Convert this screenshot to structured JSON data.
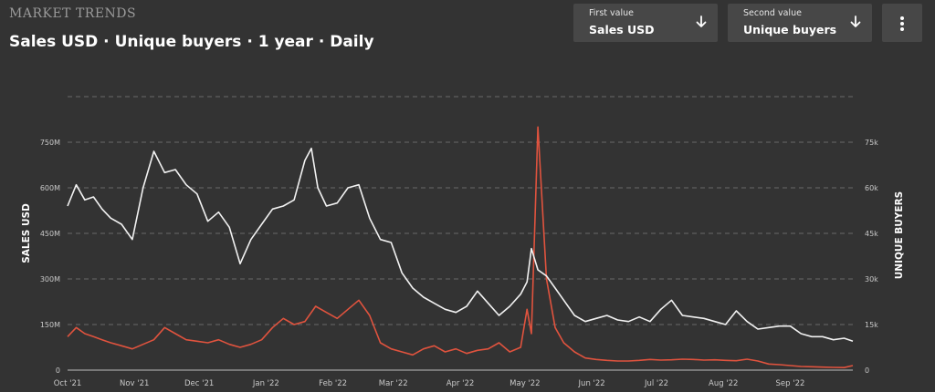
{
  "header": {
    "brand": "MARKET TRENDS",
    "title": "Sales USD · Unique buyers · 1 year · Daily"
  },
  "controls": {
    "first": {
      "caption": "First value",
      "value": "Sales USD"
    },
    "second": {
      "caption": "Second value",
      "value": "Unique buyers"
    },
    "menu_icon": "more-vertical-icon"
  },
  "colors": {
    "background": "#333333",
    "sales": "#f2f2f2",
    "buyers": "#e0533e",
    "grid": "#6a6a6a",
    "tick": "#c9c9c9"
  },
  "chart_data": {
    "type": "line",
    "ylabel": "SALES USD",
    "y2label": "UNIQUE BUYERS",
    "ylim": [
      0,
      900
    ],
    "y2lim": [
      0,
      90000
    ],
    "yticks": [
      0,
      150,
      300,
      450,
      600,
      750
    ],
    "ytick_labels": [
      "0",
      "150M",
      "300M",
      "450M",
      "600M",
      "750M"
    ],
    "y2ticks": [
      0,
      15000,
      30000,
      45000,
      60000,
      75000
    ],
    "y2tick_labels": [
      "0",
      "15k",
      "30k",
      "45k",
      "60k",
      "75k"
    ],
    "x_range": [
      0,
      364
    ],
    "xticks": [
      0,
      31,
      61,
      92,
      123,
      151,
      182,
      212,
      243,
      273,
      304,
      335
    ],
    "xtick_labels": [
      "Oct '21",
      "Nov '21",
      "Dec '21",
      "Jan '22",
      "Feb '22",
      "Mar '22",
      "Apr '22",
      "May '22",
      "Jun '22",
      "Jul '22",
      "Aug '22",
      "Sep '22"
    ],
    "grid": true,
    "series": [
      {
        "name": "Sales USD",
        "axis": "left",
        "unit": "M",
        "x": [
          0,
          4,
          8,
          12,
          16,
          20,
          25,
          30,
          35,
          40,
          45,
          50,
          55,
          60,
          65,
          70,
          75,
          80,
          85,
          90,
          95,
          100,
          105,
          110,
          113,
          116,
          120,
          125,
          130,
          135,
          140,
          145,
          150,
          155,
          160,
          165,
          170,
          175,
          180,
          185,
          190,
          195,
          200,
          205,
          210,
          213,
          215,
          218,
          222,
          226,
          230,
          235,
          240,
          245,
          250,
          255,
          260,
          265,
          270,
          275,
          280,
          285,
          290,
          295,
          300,
          305,
          310,
          315,
          320,
          325,
          330,
          335,
          340,
          345,
          350,
          355,
          360,
          364
        ],
        "values": [
          540,
          610,
          560,
          570,
          530,
          500,
          480,
          430,
          600,
          720,
          650,
          660,
          610,
          580,
          490,
          520,
          470,
          350,
          430,
          480,
          530,
          540,
          560,
          690,
          730,
          600,
          540,
          550,
          600,
          610,
          500,
          430,
          420,
          320,
          270,
          240,
          220,
          200,
          190,
          210,
          260,
          220,
          180,
          210,
          250,
          290,
          400,
          330,
          310,
          270,
          230,
          180,
          160,
          170,
          180,
          165,
          160,
          175,
          160,
          200,
          230,
          180,
          175,
          170,
          160,
          150,
          195,
          160,
          135,
          140,
          145,
          145,
          120,
          110,
          110,
          100,
          105,
          95
        ]
      },
      {
        "name": "Unique buyers",
        "axis": "right",
        "x": [
          0,
          4,
          8,
          12,
          16,
          20,
          25,
          30,
          35,
          40,
          45,
          50,
          55,
          60,
          65,
          70,
          75,
          80,
          85,
          90,
          95,
          100,
          105,
          110,
          115,
          120,
          125,
          130,
          135,
          140,
          145,
          150,
          155,
          160,
          165,
          170,
          175,
          180,
          185,
          190,
          195,
          200,
          205,
          210,
          213,
          215,
          218,
          222,
          226,
          230,
          235,
          240,
          245,
          250,
          255,
          260,
          265,
          270,
          275,
          280,
          285,
          290,
          295,
          300,
          305,
          310,
          315,
          320,
          325,
          330,
          335,
          340,
          345,
          350,
          355,
          360,
          364
        ],
        "values": [
          11000,
          14000,
          12000,
          11000,
          10000,
          9000,
          8000,
          7000,
          8500,
          10000,
          14000,
          12000,
          10000,
          9500,
          9000,
          10000,
          8500,
          7500,
          8500,
          10000,
          14000,
          17000,
          15000,
          16000,
          21000,
          19000,
          17000,
          20000,
          23000,
          18000,
          9000,
          7000,
          6000,
          5000,
          7000,
          8000,
          6000,
          7000,
          5500,
          6500,
          7000,
          9000,
          6000,
          7500,
          20000,
          12000,
          80000,
          30000,
          14000,
          9000,
          6000,
          4000,
          3500,
          3200,
          3000,
          3000,
          3200,
          3500,
          3300,
          3400,
          3600,
          3500,
          3300,
          3400,
          3200,
          3100,
          3600,
          3000,
          2000,
          1800,
          1500,
          1200,
          1100,
          1000,
          900,
          850,
          1500
        ]
      }
    ]
  }
}
